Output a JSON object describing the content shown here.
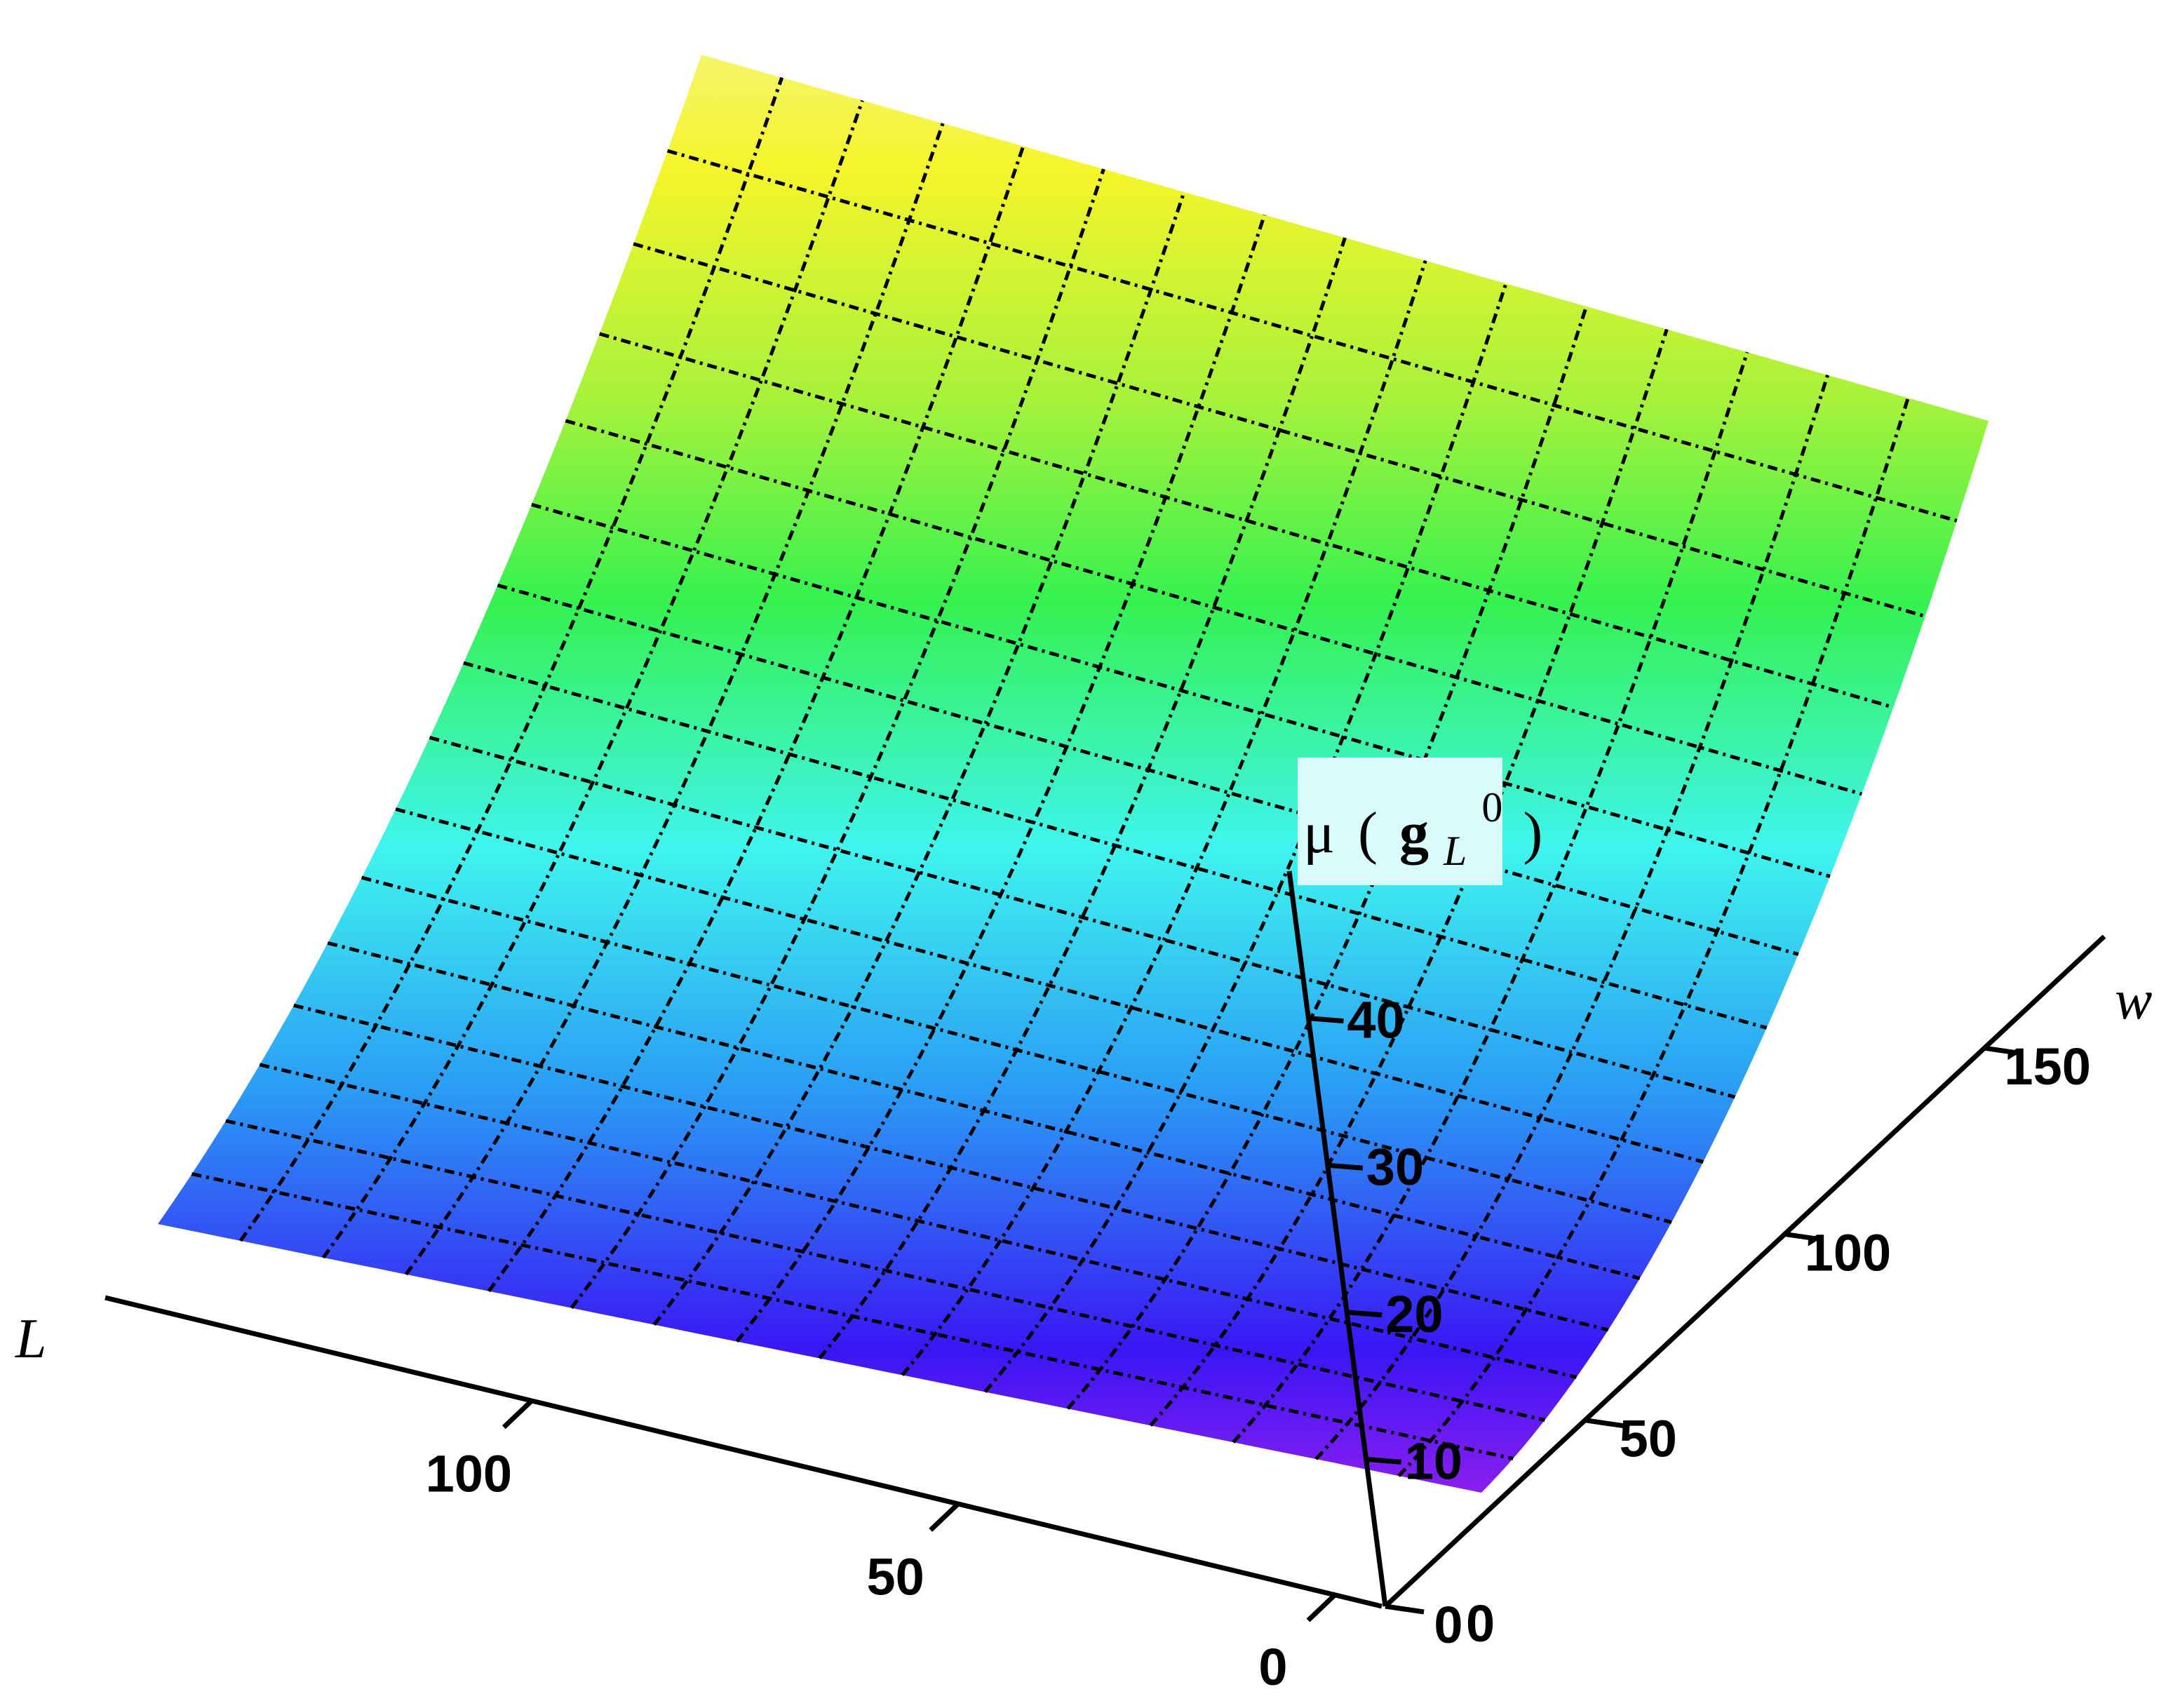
{
  "chart_data": {
    "type": "surface",
    "title": "",
    "x_axis": {
      "label": "L",
      "range": [
        0,
        150
      ],
      "ticks": [
        0,
        50,
        100
      ]
    },
    "y_axis": {
      "label": "w",
      "range": [
        0,
        180
      ],
      "ticks": [
        0,
        50,
        100,
        150
      ]
    },
    "z_axis": {
      "label_parts": {
        "mu": "μ",
        "open": "(",
        "g": "g",
        "sub": "L",
        "sup": "0",
        "close": ")"
      },
      "range": [
        0,
        50
      ],
      "ticks": [
        10,
        20,
        30,
        40
      ],
      "label_background": "#d9fbfb"
    },
    "grid_size": 16,
    "colormap": [
      "#8a1ff0",
      "#3a16f5",
      "#2a9cf5",
      "#3ff5ee",
      "#35f24f",
      "#a6f23b",
      "#f5f52a",
      "#f5f56a"
    ],
    "mesh": true,
    "origin_label": "0"
  }
}
